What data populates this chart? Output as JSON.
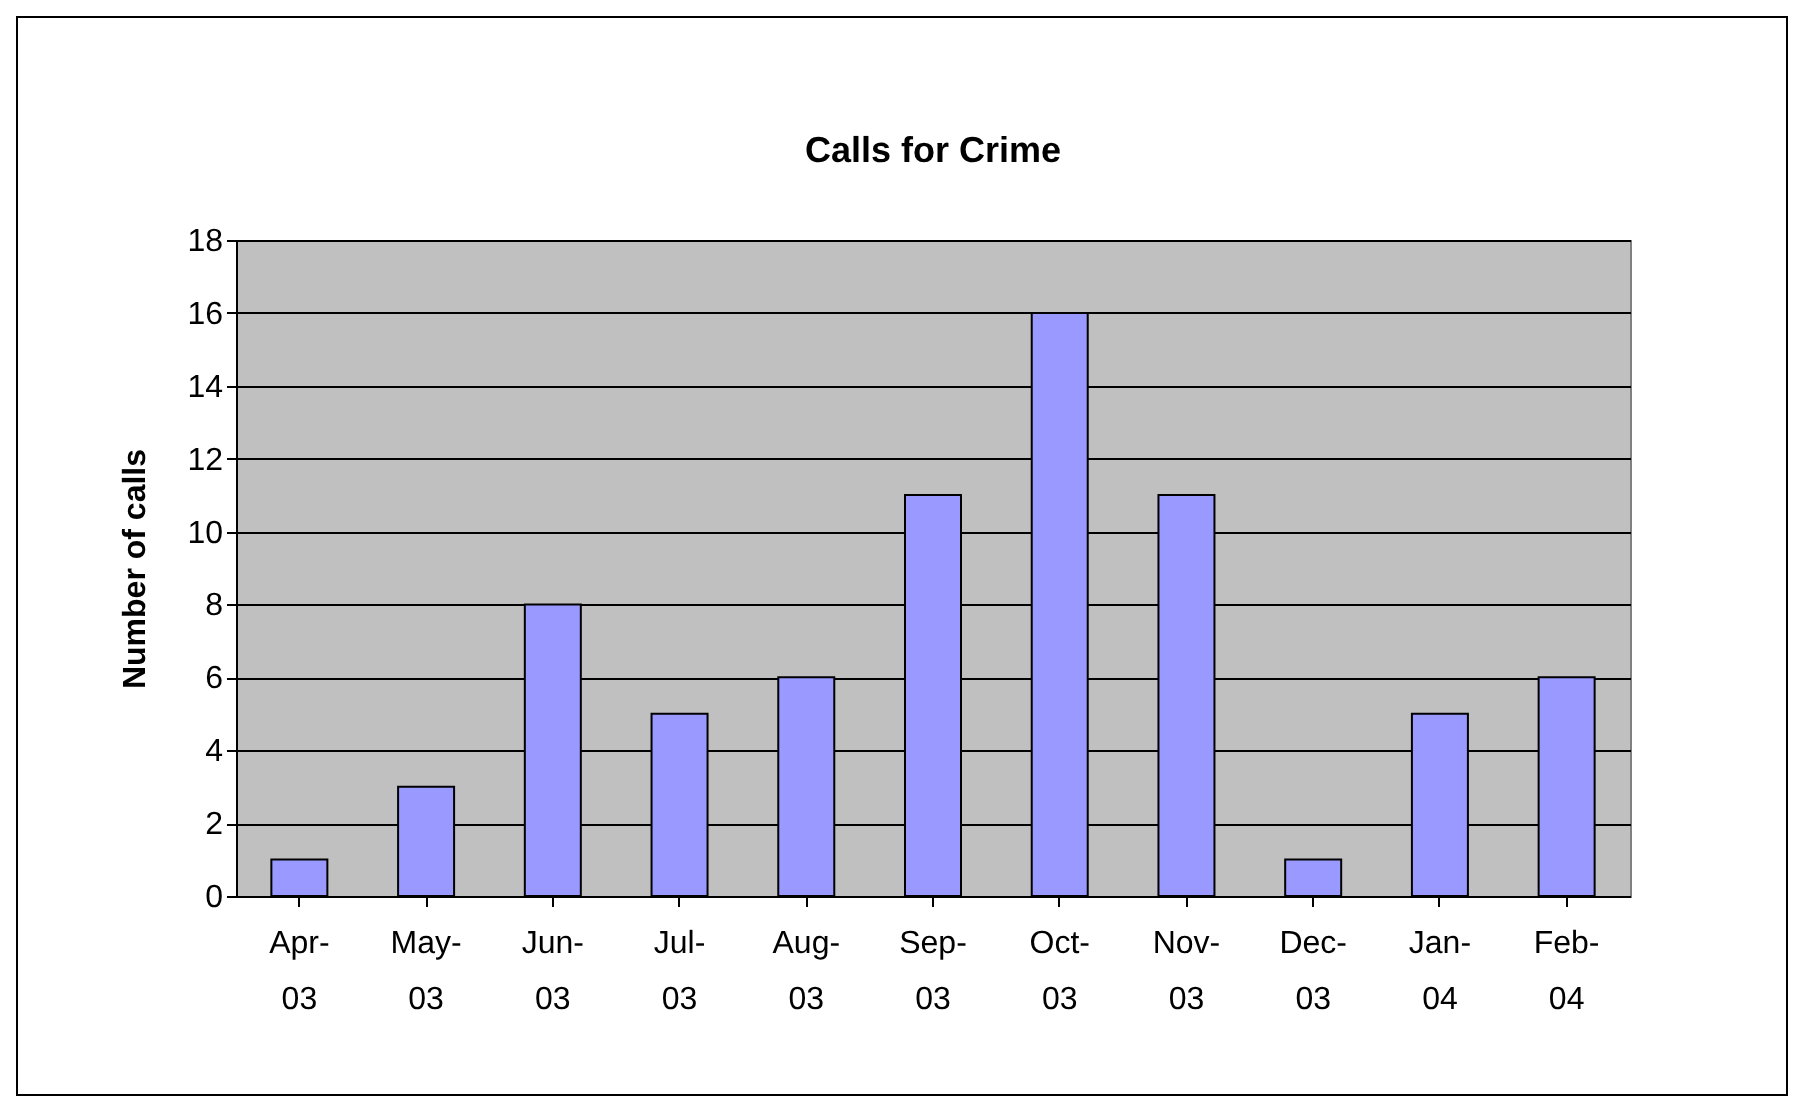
{
  "chart_data": {
    "type": "bar",
    "title": "Calls for Crime",
    "ylabel": "Number of calls",
    "categories": [
      "Apr-03",
      "May-03",
      "Jun-03",
      "Jul-03",
      "Aug-03",
      "Sep-03",
      "Oct-03",
      "Nov-03",
      "Dec-03",
      "Jan-04",
      "Feb-04"
    ],
    "values": [
      1,
      3,
      8,
      5,
      6,
      11,
      16,
      11,
      1,
      5,
      6
    ],
    "color": "#9999ff",
    "ylim": [
      0,
      18
    ],
    "yticks": [
      0,
      2,
      4,
      6,
      8,
      10,
      12,
      14,
      16,
      18
    ],
    "grid": "y"
  }
}
